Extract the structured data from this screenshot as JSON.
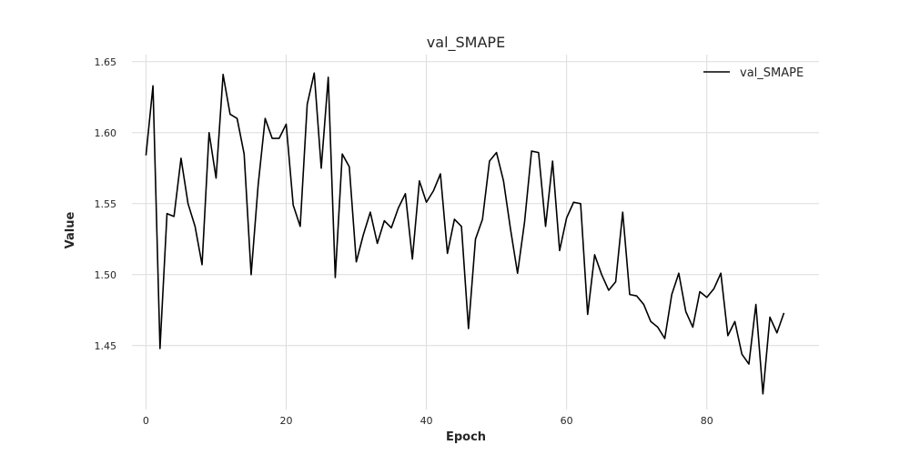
{
  "chart_data": {
    "type": "line",
    "title": "val_SMAPE",
    "xlabel": "Epoch",
    "ylabel": "Value",
    "xlim": [
      -2,
      96
    ],
    "ylim": [
      1.405,
      1.655
    ],
    "xticks": [
      0,
      20,
      40,
      60,
      80
    ],
    "yticks": [
      1.45,
      1.5,
      1.55,
      1.6,
      1.65
    ],
    "grid": true,
    "legend": {
      "position": "top-right",
      "entries": [
        "val_SMAPE"
      ]
    },
    "series": [
      {
        "name": "val_SMAPE",
        "color": "#000000",
        "x": [
          0,
          1,
          2,
          3,
          4,
          5,
          6,
          7,
          8,
          9,
          10,
          11,
          12,
          13,
          14,
          15,
          16,
          17,
          18,
          19,
          20,
          21,
          22,
          23,
          24,
          25,
          26,
          27,
          28,
          29,
          30,
          31,
          32,
          33,
          34,
          35,
          36,
          37,
          38,
          39,
          40,
          41,
          42,
          43,
          44,
          45,
          46,
          47,
          48,
          49,
          50,
          51,
          52,
          53,
          54,
          55,
          56,
          57,
          58,
          59,
          60,
          61,
          62,
          63,
          64,
          65,
          66,
          67,
          68,
          69,
          70,
          71,
          72,
          73,
          74,
          75,
          76,
          77,
          78,
          79,
          80,
          81,
          82,
          83,
          84,
          85,
          86,
          87,
          88,
          89,
          90,
          91
        ],
        "values": [
          1.584,
          1.633,
          1.448,
          1.543,
          1.541,
          1.582,
          1.55,
          1.534,
          1.507,
          1.6,
          1.568,
          1.641,
          1.613,
          1.61,
          1.585,
          1.5,
          1.563,
          1.61,
          1.596,
          1.596,
          1.606,
          1.549,
          1.534,
          1.62,
          1.642,
          1.575,
          1.639,
          1.498,
          1.585,
          1.576,
          1.509,
          1.528,
          1.544,
          1.522,
          1.538,
          1.533,
          1.547,
          1.557,
          1.511,
          1.566,
          1.551,
          1.559,
          1.571,
          1.515,
          1.539,
          1.534,
          1.462,
          1.525,
          1.539,
          1.58,
          1.586,
          1.566,
          1.532,
          1.501,
          1.537,
          1.587,
          1.586,
          1.534,
          1.58,
          1.517,
          1.54,
          1.551,
          1.55,
          1.472,
          1.514,
          1.5,
          1.489,
          1.495,
          1.544,
          1.486,
          1.485,
          1.479,
          1.467,
          1.463,
          1.455,
          1.486,
          1.501,
          1.474,
          1.463,
          1.488,
          1.484,
          1.49,
          1.501,
          1.457,
          1.467,
          1.444,
          1.437,
          1.479,
          1.416,
          1.47,
          1.459,
          1.473
        ]
      }
    ]
  }
}
